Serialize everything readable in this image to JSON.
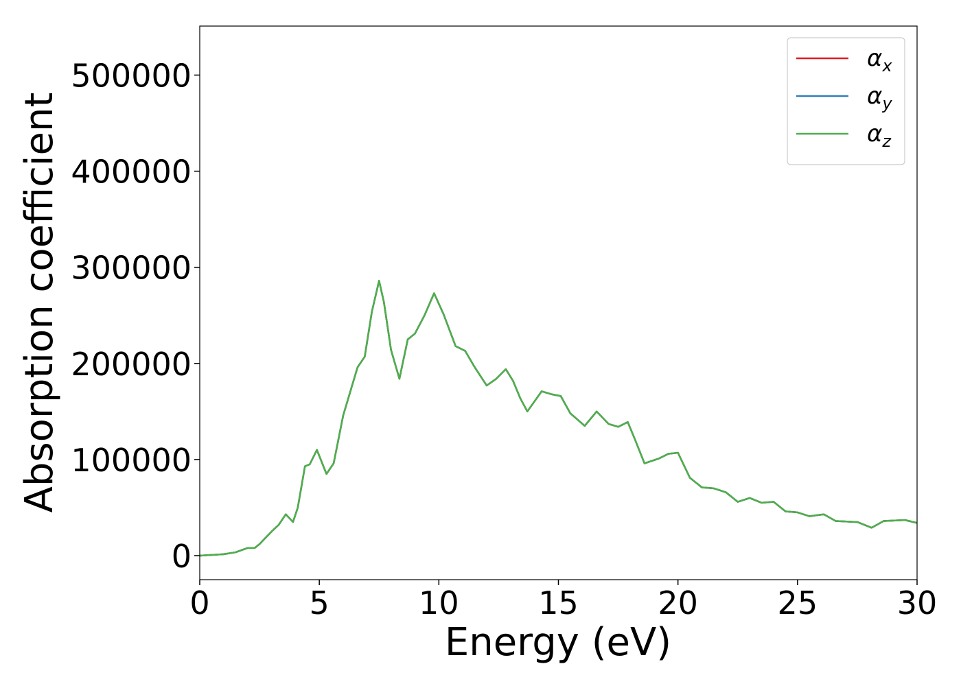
{
  "chart_data": {
    "type": "line",
    "xlabel": "Energy (eV)",
    "ylabel": "Absorption coefficient",
    "x": [
      0,
      1,
      1.5,
      2,
      2.3,
      2.5,
      3,
      3.3,
      3.6,
      3.9,
      4.1,
      4.4,
      4.6,
      4.9,
      5.3,
      5.6,
      6,
      6.3,
      6.6,
      6.9,
      7.2,
      7.5,
      7.7,
      8,
      8.35,
      8.7,
      9,
      9.4,
      9.8,
      10.2,
      10.7,
      11.1,
      11.5,
      12,
      12.4,
      12.8,
      13.1,
      13.4,
      13.7,
      14.3,
      14.7,
      15.1,
      15.5,
      16.1,
      16.6,
      17.1,
      17.5,
      17.9,
      18.2,
      18.6,
      19.2,
      19.6,
      20,
      20.5,
      21,
      21.5,
      22,
      22.5,
      23,
      23.5,
      24,
      24.5,
      25,
      25.5,
      26.1,
      26.6,
      27.5,
      28.1,
      28.6,
      29.5,
      30
    ],
    "series": [
      {
        "name": "αx",
        "color": "#e41a1c",
        "values": [
          0,
          1500,
          3500,
          8000,
          8000,
          12000,
          25000,
          32000,
          43000,
          35000,
          50000,
          93000,
          95000,
          110000,
          85000,
          96000,
          146000,
          171000,
          196000,
          207000,
          254000,
          286000,
          264000,
          214000,
          184000,
          225000,
          231000,
          250000,
          273000,
          251000,
          218000,
          213000,
          196000,
          177000,
          184000,
          194000,
          182000,
          164000,
          150000,
          171000,
          168000,
          166000,
          148000,
          135000,
          150000,
          137000,
          134000,
          139000,
          121000,
          96000,
          101000,
          106000,
          107000,
          81000,
          71000,
          70000,
          66000,
          56000,
          60000,
          55000,
          56000,
          46000,
          45000,
          41000,
          43000,
          36000,
          35000,
          29000,
          36000,
          37000,
          34000
        ]
      },
      {
        "name": "αy",
        "color": "#377eb8",
        "values": [
          0,
          1500,
          3500,
          8000,
          8000,
          12000,
          25000,
          32000,
          43000,
          35000,
          50000,
          93000,
          95000,
          110000,
          85000,
          96000,
          146000,
          171000,
          196000,
          207000,
          254000,
          286000,
          264000,
          214000,
          184000,
          225000,
          231000,
          250000,
          273000,
          251000,
          218000,
          213000,
          196000,
          177000,
          184000,
          194000,
          182000,
          164000,
          150000,
          171000,
          168000,
          166000,
          148000,
          135000,
          150000,
          137000,
          134000,
          139000,
          121000,
          96000,
          101000,
          106000,
          107000,
          81000,
          71000,
          70000,
          66000,
          56000,
          60000,
          55000,
          56000,
          46000,
          45000,
          41000,
          43000,
          36000,
          35000,
          29000,
          36000,
          37000,
          34000
        ]
      },
      {
        "name": "αz",
        "color": "#4daf4a",
        "values": [
          0,
          1500,
          3500,
          8000,
          8000,
          12000,
          25000,
          32000,
          43000,
          35000,
          50000,
          93000,
          95000,
          110000,
          85000,
          96000,
          146000,
          171000,
          196000,
          207000,
          254000,
          286000,
          264000,
          214000,
          184000,
          225000,
          231000,
          250000,
          273000,
          251000,
          218000,
          213000,
          196000,
          177000,
          184000,
          194000,
          182000,
          164000,
          150000,
          171000,
          168000,
          166000,
          148000,
          135000,
          150000,
          137000,
          134000,
          139000,
          121000,
          96000,
          101000,
          106000,
          107000,
          81000,
          71000,
          70000,
          66000,
          56000,
          60000,
          55000,
          56000,
          46000,
          45000,
          41000,
          43000,
          36000,
          35000,
          29000,
          36000,
          37000,
          34000
        ]
      }
    ],
    "xlim": [
      0,
      30
    ],
    "xticks": [
      0,
      5,
      10,
      15,
      20,
      25,
      30
    ],
    "ylim": [
      -25000,
      551000
    ],
    "yticks": [
      0,
      100000,
      200000,
      300000,
      400000,
      500000
    ],
    "grid": false,
    "legend": "upper right"
  }
}
